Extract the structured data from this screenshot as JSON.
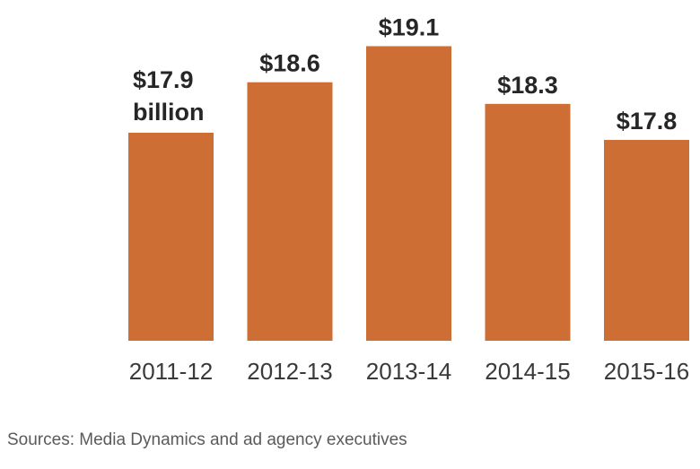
{
  "chart_data": {
    "type": "bar",
    "categories": [
      "2011-12",
      "2012-13",
      "2013-14",
      "2014-15",
      "2015-16"
    ],
    "values": [
      17.9,
      18.6,
      19.1,
      18.3,
      17.8
    ],
    "value_labels": [
      "$17.9",
      "$18.6",
      "$19.1",
      "$18.3",
      "$17.8"
    ],
    "first_label_unit": "billion",
    "title": "",
    "xlabel": "",
    "ylabel": "",
    "bar_color": "#cd6e34",
    "grid": false,
    "legend": "none"
  },
  "source": "Sources: Media Dynamics and ad agency executives"
}
